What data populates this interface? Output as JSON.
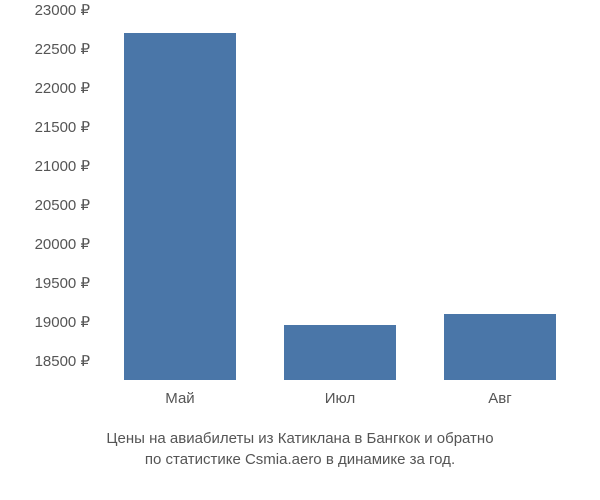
{
  "chart": {
    "type": "bar",
    "categories": [
      "Май",
      "Июл",
      "Авг"
    ],
    "values": [
      22700,
      18950,
      19100
    ],
    "bar_color": "#4a76a8",
    "background_color": "#ffffff",
    "ymin": 18250,
    "ymax": 23000,
    "ytick_step": 500,
    "yticks": [
      18500,
      19000,
      19500,
      20000,
      20500,
      21000,
      21500,
      22000,
      22500,
      23000
    ],
    "currency_symbol": "₽",
    "tick_color": "#555555",
    "tick_fontsize": 15,
    "bar_width_ratio": 0.7,
    "caption_line1": "Цены на авиабилеты из Катиклана в Бангкок и обратно",
    "caption_line2": "по статистике Csmia.aero в динамике за год.",
    "caption_color": "#555555",
    "caption_fontsize": 15
  }
}
